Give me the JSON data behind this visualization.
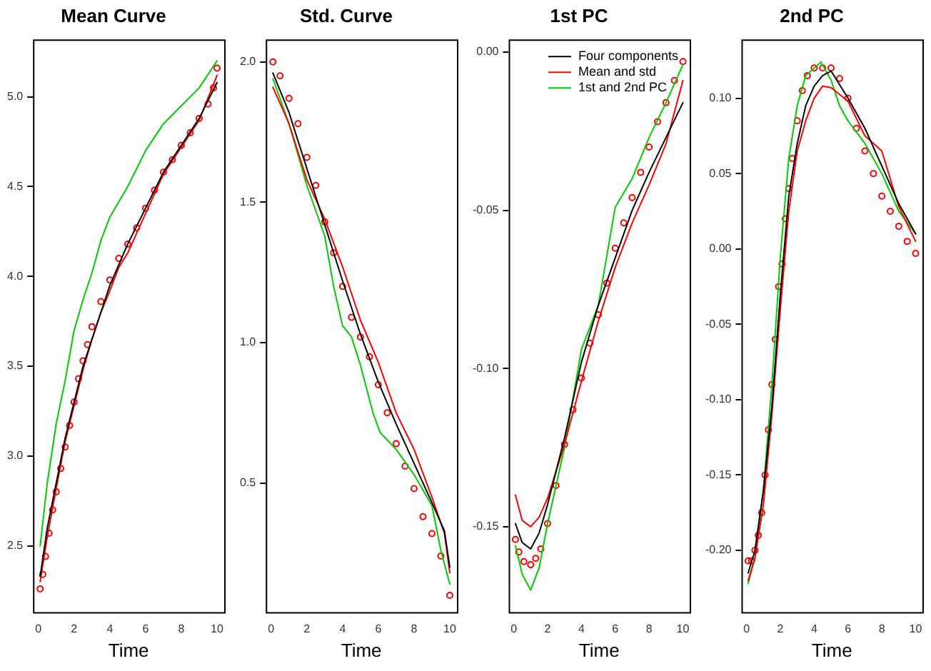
{
  "chart_data": [
    {
      "type": "line",
      "title": "Mean Curve",
      "xlabel": "Time",
      "xlim": [
        -0.3,
        10.4
      ],
      "ylim": [
        2.13,
        5.32
      ],
      "xticks": [
        0,
        2,
        4,
        6,
        8,
        10
      ],
      "yticks": [
        {
          "value": 2.5,
          "label": "2.5"
        },
        {
          "value": 3,
          "label": "3.0"
        },
        {
          "value": 3.5,
          "label": "3.5"
        },
        {
          "value": 4,
          "label": "4.0"
        },
        {
          "value": 4.5,
          "label": "4.5"
        },
        {
          "value": 5,
          "label": "5.0"
        }
      ],
      "grid": false,
      "legend": false,
      "series": [
        {
          "type": "line",
          "color": "#000000",
          "x": [
            0.1,
            0.5,
            1,
            1.5,
            2,
            2.5,
            3,
            3.5,
            4,
            5,
            6,
            7,
            8,
            9,
            10
          ],
          "values": [
            2.33,
            2.6,
            2.85,
            3.1,
            3.3,
            3.5,
            3.65,
            3.8,
            3.95,
            4.18,
            4.38,
            4.58,
            4.73,
            4.88,
            5.08
          ]
        },
        {
          "type": "line",
          "color": "#ff0000",
          "x": [
            0.1,
            0.5,
            1,
            1.5,
            2,
            2.5,
            3,
            3.5,
            4,
            4.5,
            5,
            6,
            7,
            8,
            9,
            10
          ],
          "values": [
            2.3,
            2.55,
            2.82,
            3.08,
            3.28,
            3.48,
            3.65,
            3.8,
            3.92,
            4.05,
            4.13,
            4.35,
            4.57,
            4.72,
            4.87,
            5.12
          ]
        },
        {
          "type": "line",
          "color": "#00cc00",
          "x": [
            0.1,
            0.5,
            1,
            1.5,
            2,
            2.5,
            3,
            3.5,
            4,
            5,
            6,
            7,
            8,
            9,
            10
          ],
          "values": [
            2.5,
            2.85,
            3.18,
            3.42,
            3.7,
            3.87,
            4.02,
            4.2,
            4.33,
            4.5,
            4.7,
            4.85,
            4.95,
            5.05,
            5.2
          ]
        },
        {
          "type": "scatter",
          "color": "#ff0000",
          "marker": "circle",
          "x": [
            0.1,
            0.25,
            0.4,
            0.6,
            0.8,
            1,
            1.25,
            1.5,
            1.75,
            2,
            2.25,
            2.5,
            2.75,
            3,
            3.5,
            4,
            4.5,
            5,
            5.5,
            6,
            6.5,
            7,
            7.5,
            8,
            8.5,
            9,
            9.5,
            9.8,
            10
          ],
          "values": [
            2.26,
            2.34,
            2.44,
            2.57,
            2.7,
            2.8,
            2.93,
            3.05,
            3.17,
            3.3,
            3.43,
            3.53,
            3.62,
            3.72,
            3.86,
            3.98,
            4.1,
            4.18,
            4.27,
            4.38,
            4.48,
            4.58,
            4.65,
            4.73,
            4.8,
            4.88,
            4.96,
            5.05,
            5.16
          ]
        }
      ]
    },
    {
      "type": "line",
      "title": "Std. Curve",
      "xlabel": "Time",
      "xlim": [
        -0.3,
        10.4
      ],
      "ylim": [
        0.04,
        2.08
      ],
      "xticks": [
        0,
        2,
        4,
        6,
        8,
        10
      ],
      "yticks": [
        {
          "value": 0.5,
          "label": "0.5"
        },
        {
          "value": 1,
          "label": "1.0"
        },
        {
          "value": 1.5,
          "label": "1.5"
        },
        {
          "value": 2,
          "label": "2.0"
        }
      ],
      "grid": false,
      "legend": false,
      "series": [
        {
          "type": "line",
          "color": "#000000",
          "x": [
            0.1,
            1,
            2,
            3,
            4,
            5,
            6,
            7,
            8,
            9,
            9.7,
            10
          ],
          "values": [
            1.96,
            1.82,
            1.62,
            1.42,
            1.22,
            1.03,
            0.86,
            0.71,
            0.57,
            0.43,
            0.33,
            0.2
          ]
        },
        {
          "type": "line",
          "color": "#ff0000",
          "x": [
            0.1,
            1,
            2,
            3,
            4,
            5,
            6,
            7,
            8,
            9,
            9.7,
            10
          ],
          "values": [
            1.91,
            1.78,
            1.58,
            1.44,
            1.27,
            1.08,
            0.93,
            0.75,
            0.62,
            0.45,
            0.32,
            0.18
          ]
        },
        {
          "type": "line",
          "color": "#00cc00",
          "x": [
            0.1,
            1,
            2,
            3,
            3.5,
            4,
            4.5,
            5,
            5.7,
            6.1,
            7,
            8,
            9,
            9.5,
            10
          ],
          "values": [
            1.94,
            1.78,
            1.56,
            1.38,
            1.2,
            1.06,
            1.02,
            0.92,
            0.75,
            0.68,
            0.62,
            0.53,
            0.42,
            0.26,
            0.14
          ]
        },
        {
          "type": "scatter",
          "color": "#ff0000",
          "marker": "circle",
          "x": [
            0.1,
            0.5,
            1,
            1.5,
            2,
            2.5,
            3,
            3.5,
            4,
            4.5,
            5,
            5.5,
            6,
            6.5,
            7,
            7.5,
            8,
            8.5,
            9,
            9.5,
            10
          ],
          "values": [
            2.0,
            1.95,
            1.87,
            1.78,
            1.66,
            1.56,
            1.43,
            1.32,
            1.2,
            1.09,
            1.02,
            0.95,
            0.85,
            0.75,
            0.64,
            0.56,
            0.48,
            0.38,
            0.32,
            0.24,
            0.1
          ]
        }
      ]
    },
    {
      "type": "line",
      "title": "1st PC",
      "xlabel": "Time",
      "xlim": [
        -0.3,
        10.4
      ],
      "ylim": [
        -0.177,
        0.004
      ],
      "xticks": [
        0,
        2,
        4,
        6,
        8,
        10
      ],
      "yticks": [
        {
          "value": -0.15,
          "label": "-0.15"
        },
        {
          "value": -0.1,
          "label": "-0.10"
        },
        {
          "value": -0.05,
          "label": "-0.05"
        },
        {
          "value": 0,
          "label": "0.00"
        }
      ],
      "grid": false,
      "legend": "top right",
      "series": [
        {
          "type": "line",
          "name": "Four components",
          "color": "#000000",
          "x": [
            0.1,
            0.5,
            1,
            1.5,
            2,
            3,
            4,
            5,
            6,
            7,
            8,
            9,
            10
          ],
          "values": [
            -0.149,
            -0.155,
            -0.157,
            -0.152,
            -0.143,
            -0.122,
            -0.098,
            -0.08,
            -0.065,
            -0.05,
            -0.038,
            -0.027,
            -0.016
          ]
        },
        {
          "type": "line",
          "name": "Mean and std",
          "color": "#ff0000",
          "x": [
            0.1,
            0.5,
            1,
            1.5,
            2,
            3,
            4,
            5,
            6,
            7,
            8,
            9,
            10
          ],
          "values": [
            -0.14,
            -0.148,
            -0.15,
            -0.147,
            -0.141,
            -0.124,
            -0.104,
            -0.085,
            -0.068,
            -0.054,
            -0.042,
            -0.029,
            -0.009
          ]
        },
        {
          "type": "line",
          "name": "1st and 2nd PC",
          "color": "#00cc00",
          "x": [
            0.1,
            0.5,
            1,
            1.5,
            2,
            3,
            4,
            5,
            6,
            7,
            8,
            9,
            10
          ],
          "values": [
            -0.156,
            -0.165,
            -0.17,
            -0.163,
            -0.149,
            -0.125,
            -0.094,
            -0.08,
            -0.049,
            -0.04,
            -0.027,
            -0.016,
            -0.004
          ]
        },
        {
          "type": "scatter",
          "color": "#ff0000",
          "marker": "circle",
          "x": [
            0.1,
            0.3,
            0.6,
            1,
            1.3,
            1.6,
            2,
            2.5,
            3,
            3.5,
            4,
            4.5,
            5,
            5.5,
            6,
            6.5,
            7,
            7.5,
            8,
            8.5,
            9,
            9.5,
            10
          ],
          "values": [
            -0.154,
            -0.158,
            -0.161,
            -0.162,
            -0.16,
            -0.157,
            -0.149,
            -0.137,
            -0.124,
            -0.113,
            -0.103,
            -0.092,
            -0.083,
            -0.073,
            -0.062,
            -0.054,
            -0.046,
            -0.038,
            -0.03,
            -0.022,
            -0.016,
            -0.009,
            -0.003
          ]
        }
      ]
    },
    {
      "type": "line",
      "title": "2nd PC",
      "xlabel": "Time",
      "xlim": [
        -0.3,
        10.4
      ],
      "ylim": [
        -0.241,
        0.139
      ],
      "xticks": [
        0,
        2,
        4,
        6,
        8,
        10
      ],
      "yticks": [
        {
          "value": -0.2,
          "label": "-0.20"
        },
        {
          "value": -0.15,
          "label": "-0.15"
        },
        {
          "value": -0.1,
          "label": "-0.10"
        },
        {
          "value": -0.05,
          "label": "-0.05"
        },
        {
          "value": 0,
          "label": "0.00"
        },
        {
          "value": 0.05,
          "label": "0.05"
        },
        {
          "value": 0.1,
          "label": "0.10"
        }
      ],
      "grid": false,
      "legend": false,
      "series": [
        {
          "type": "line",
          "color": "#000000",
          "x": [
            0.1,
            0.5,
            1,
            1.5,
            2,
            2.5,
            3,
            3.5,
            4,
            4.5,
            5,
            6,
            7,
            8,
            9,
            10
          ],
          "values": [
            -0.215,
            -0.2,
            -0.16,
            -0.105,
            -0.03,
            0.035,
            0.07,
            0.095,
            0.108,
            0.115,
            0.118,
            0.1,
            0.08,
            0.055,
            0.03,
            0.01
          ]
        },
        {
          "type": "line",
          "color": "#ff0000",
          "x": [
            0.1,
            0.5,
            1,
            1.5,
            2,
            2.5,
            3,
            3.5,
            4,
            4.5,
            5,
            6,
            7,
            8,
            9,
            10
          ],
          "values": [
            -0.22,
            -0.205,
            -0.17,
            -0.11,
            -0.04,
            0.025,
            0.065,
            0.085,
            0.1,
            0.108,
            0.107,
            0.098,
            0.075,
            0.065,
            0.028,
            0.005
          ]
        },
        {
          "type": "line",
          "color": "#00cc00",
          "x": [
            0.1,
            0.5,
            1,
            1.5,
            2,
            2.5,
            3,
            3.5,
            4,
            4.4,
            5,
            5.5,
            6,
            7,
            8,
            9,
            10
          ],
          "values": [
            -0.222,
            -0.205,
            -0.16,
            -0.09,
            -0.005,
            0.06,
            0.095,
            0.115,
            0.12,
            0.124,
            0.112,
            0.095,
            0.085,
            0.07,
            0.05,
            0.025,
            0.01
          ]
        },
        {
          "type": "scatter",
          "color": "#ff0000",
          "marker": "circle",
          "x": [
            0.1,
            0.3,
            0.5,
            0.7,
            0.9,
            1.1,
            1.3,
            1.5,
            1.7,
            1.9,
            2.1,
            2.3,
            2.5,
            2.7,
            3,
            3.3,
            3.6,
            4,
            4.5,
            5,
            5.5,
            6,
            6.5,
            7,
            7.5,
            8,
            8.5,
            9,
            9.5,
            10
          ],
          "values": [
            -0.207,
            -0.207,
            -0.2,
            -0.19,
            -0.175,
            -0.15,
            -0.12,
            -0.09,
            -0.06,
            -0.025,
            -0.01,
            0.02,
            0.04,
            0.06,
            0.085,
            0.105,
            0.115,
            0.12,
            0.12,
            0.12,
            0.113,
            0.1,
            0.08,
            0.065,
            0.05,
            0.035,
            0.025,
            0.015,
            0.005,
            -0.003
          ]
        }
      ]
    }
  ]
}
